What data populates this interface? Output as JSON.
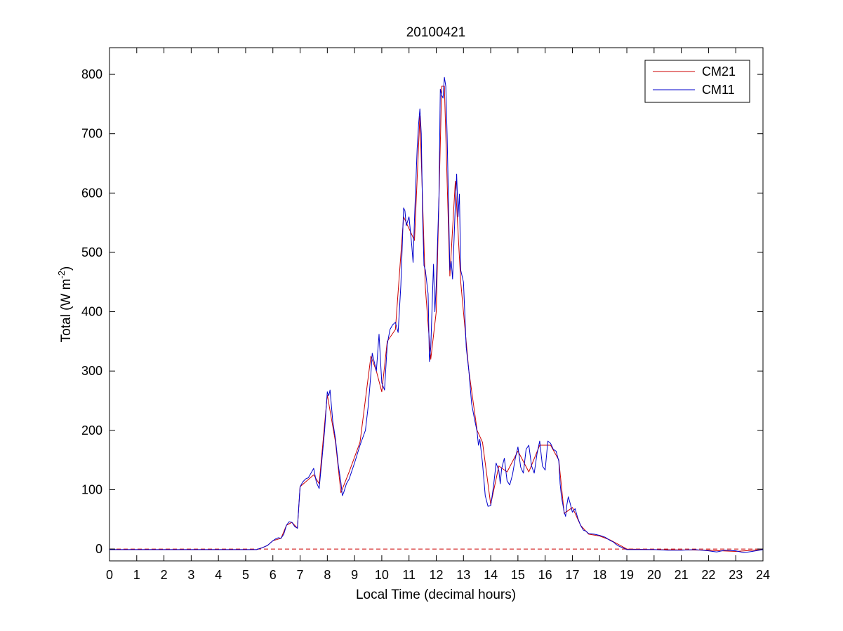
{
  "chart_data": {
    "type": "line",
    "title": "20100421",
    "xlabel": "Local Time (decimal hours)",
    "ylabel": "Total (W m-2)",
    "ylabel_parts": {
      "main": "Total (W m",
      "sup": "-2",
      "close": ")"
    },
    "xlim": [
      0,
      24
    ],
    "ylim": [
      -20,
      845
    ],
    "xticks": [
      0,
      1,
      2,
      3,
      4,
      5,
      6,
      7,
      8,
      9,
      10,
      11,
      12,
      13,
      14,
      15,
      16,
      17,
      18,
      19,
      20,
      21,
      22,
      23,
      24
    ],
    "xtick_labels": [
      "0",
      "1",
      "2",
      "3",
      "4",
      "5",
      "6",
      "7",
      "8",
      "9",
      "10",
      "11",
      "12",
      "13",
      "14",
      "15",
      "16",
      "17",
      "18",
      "19",
      "20",
      "21",
      "22",
      "23",
      "24"
    ],
    "yticks": [
      0,
      100,
      200,
      300,
      400,
      500,
      600,
      700,
      800
    ],
    "ytick_labels": [
      "0",
      "100",
      "200",
      "300",
      "400",
      "500",
      "600",
      "700",
      "800"
    ],
    "grid": false,
    "legend_position": "top-right",
    "zero_line": {
      "y": 0,
      "style": "dashed",
      "color": "#cc0000"
    },
    "series": [
      {
        "name": "CM21",
        "color": "#cc0000",
        "points": [
          [
            0,
            -1
          ],
          [
            5.4,
            -1
          ],
          [
            5.6,
            2
          ],
          [
            5.8,
            6
          ],
          [
            6.0,
            14
          ],
          [
            6.3,
            18
          ],
          [
            6.5,
            40
          ],
          [
            6.7,
            45
          ],
          [
            6.9,
            35
          ],
          [
            7.0,
            105
          ],
          [
            7.5,
            125
          ],
          [
            7.7,
            110
          ],
          [
            8.0,
            260
          ],
          [
            8.3,
            180
          ],
          [
            8.5,
            95
          ],
          [
            8.8,
            130
          ],
          [
            9.2,
            180
          ],
          [
            9.6,
            325
          ],
          [
            9.8,
            300
          ],
          [
            10.0,
            265
          ],
          [
            10.2,
            350
          ],
          [
            10.5,
            370
          ],
          [
            10.8,
            560
          ],
          [
            11.0,
            540
          ],
          [
            11.2,
            520
          ],
          [
            11.4,
            730
          ],
          [
            11.6,
            440
          ],
          [
            11.8,
            320
          ],
          [
            12.0,
            400
          ],
          [
            12.2,
            780
          ],
          [
            12.3,
            780
          ],
          [
            12.5,
            460
          ],
          [
            12.7,
            620
          ],
          [
            12.9,
            450
          ],
          [
            13.2,
            300
          ],
          [
            13.5,
            200
          ],
          [
            13.7,
            180
          ],
          [
            14.0,
            75
          ],
          [
            14.3,
            140
          ],
          [
            14.6,
            130
          ],
          [
            15.0,
            165
          ],
          [
            15.4,
            130
          ],
          [
            15.8,
            175
          ],
          [
            16.2,
            175
          ],
          [
            16.5,
            150
          ],
          [
            16.7,
            60
          ],
          [
            17.0,
            70
          ],
          [
            17.3,
            40
          ],
          [
            17.6,
            25
          ],
          [
            18.0,
            22
          ],
          [
            18.4,
            15
          ],
          [
            18.8,
            5
          ],
          [
            19.0,
            0
          ],
          [
            20.0,
            -1
          ],
          [
            22.0,
            -2
          ],
          [
            23.0,
            -4
          ],
          [
            24.0,
            -1
          ]
        ]
      },
      {
        "name": "CM11",
        "color": "#0000cc",
        "points": [
          [
            0,
            -1
          ],
          [
            1.0,
            -1
          ],
          [
            2.0,
            -1
          ],
          [
            3.0,
            -1
          ],
          [
            4.0,
            -1
          ],
          [
            5.0,
            -1
          ],
          [
            5.4,
            -1
          ],
          [
            5.6,
            2
          ],
          [
            5.8,
            6
          ],
          [
            5.9,
            10
          ],
          [
            6.0,
            14
          ],
          [
            6.1,
            17
          ],
          [
            6.2,
            19
          ],
          [
            6.3,
            18
          ],
          [
            6.4,
            25
          ],
          [
            6.5,
            40
          ],
          [
            6.6,
            46
          ],
          [
            6.7,
            45
          ],
          [
            6.8,
            38
          ],
          [
            6.9,
            35
          ],
          [
            7.0,
            105
          ],
          [
            7.1,
            113
          ],
          [
            7.2,
            118
          ],
          [
            7.3,
            120
          ],
          [
            7.4,
            128
          ],
          [
            7.5,
            136
          ],
          [
            7.6,
            112
          ],
          [
            7.7,
            102
          ],
          [
            7.8,
            150
          ],
          [
            7.9,
            200
          ],
          [
            8.0,
            265
          ],
          [
            8.05,
            258
          ],
          [
            8.1,
            268
          ],
          [
            8.2,
            215
          ],
          [
            8.3,
            185
          ],
          [
            8.4,
            142
          ],
          [
            8.5,
            112
          ],
          [
            8.55,
            90
          ],
          [
            8.6,
            95
          ],
          [
            8.7,
            110
          ],
          [
            8.8,
            118
          ],
          [
            9.0,
            145
          ],
          [
            9.2,
            175
          ],
          [
            9.4,
            200
          ],
          [
            9.5,
            240
          ],
          [
            9.6,
            295
          ],
          [
            9.65,
            330
          ],
          [
            9.8,
            300
          ],
          [
            9.9,
            362
          ],
          [
            10.0,
            280
          ],
          [
            10.1,
            268
          ],
          [
            10.2,
            345
          ],
          [
            10.3,
            370
          ],
          [
            10.4,
            378
          ],
          [
            10.5,
            382
          ],
          [
            10.6,
            365
          ],
          [
            10.7,
            445
          ],
          [
            10.8,
            575
          ],
          [
            10.85,
            570
          ],
          [
            10.9,
            545
          ],
          [
            11.0,
            560
          ],
          [
            11.1,
            512
          ],
          [
            11.15,
            483
          ],
          [
            11.2,
            555
          ],
          [
            11.3,
            675
          ],
          [
            11.35,
            715
          ],
          [
            11.4,
            742
          ],
          [
            11.45,
            700
          ],
          [
            11.5,
            560
          ],
          [
            11.55,
            478
          ],
          [
            11.6,
            470
          ],
          [
            11.7,
            430
          ],
          [
            11.75,
            316
          ],
          [
            11.8,
            340
          ],
          [
            11.9,
            480
          ],
          [
            11.95,
            400
          ],
          [
            12.0,
            445
          ],
          [
            12.1,
            595
          ],
          [
            12.15,
            775
          ],
          [
            12.2,
            765
          ],
          [
            12.25,
            760
          ],
          [
            12.3,
            795
          ],
          [
            12.35,
            780
          ],
          [
            12.4,
            698
          ],
          [
            12.5,
            470
          ],
          [
            12.55,
            485
          ],
          [
            12.6,
            455
          ],
          [
            12.7,
            580
          ],
          [
            12.75,
            632
          ],
          [
            12.8,
            560
          ],
          [
            12.85,
            598
          ],
          [
            12.9,
            470
          ],
          [
            13.0,
            450
          ],
          [
            13.1,
            340
          ],
          [
            13.2,
            300
          ],
          [
            13.3,
            245
          ],
          [
            13.4,
            220
          ],
          [
            13.5,
            198
          ],
          [
            13.55,
            175
          ],
          [
            13.6,
            185
          ],
          [
            13.7,
            145
          ],
          [
            13.8,
            90
          ],
          [
            13.9,
            72
          ],
          [
            14.0,
            73
          ],
          [
            14.1,
            105
          ],
          [
            14.2,
            145
          ],
          [
            14.3,
            132
          ],
          [
            14.35,
            110
          ],
          [
            14.4,
            135
          ],
          [
            14.5,
            153
          ],
          [
            14.6,
            115
          ],
          [
            14.7,
            108
          ],
          [
            14.8,
            125
          ],
          [
            14.9,
            152
          ],
          [
            15.0,
            172
          ],
          [
            15.1,
            138
          ],
          [
            15.2,
            128
          ],
          [
            15.3,
            168
          ],
          [
            15.4,
            175
          ],
          [
            15.5,
            140
          ],
          [
            15.6,
            128
          ],
          [
            15.7,
            160
          ],
          [
            15.8,
            182
          ],
          [
            15.9,
            140
          ],
          [
            16.0,
            133
          ],
          [
            16.1,
            182
          ],
          [
            16.2,
            178
          ],
          [
            16.3,
            168
          ],
          [
            16.4,
            165
          ],
          [
            16.5,
            148
          ],
          [
            16.55,
            110
          ],
          [
            16.6,
            88
          ],
          [
            16.7,
            62
          ],
          [
            16.75,
            55
          ],
          [
            16.8,
            75
          ],
          [
            16.85,
            88
          ],
          [
            16.9,
            80
          ],
          [
            17.0,
            62
          ],
          [
            17.1,
            68
          ],
          [
            17.2,
            52
          ],
          [
            17.3,
            40
          ],
          [
            17.4,
            32
          ],
          [
            17.5,
            30
          ],
          [
            17.6,
            26
          ],
          [
            17.8,
            25
          ],
          [
            18.0,
            23
          ],
          [
            18.2,
            20
          ],
          [
            18.3,
            17
          ],
          [
            18.4,
            14
          ],
          [
            18.5,
            12
          ],
          [
            18.6,
            8
          ],
          [
            18.7,
            5
          ],
          [
            18.8,
            3
          ],
          [
            18.9,
            1
          ],
          [
            19.0,
            -1
          ],
          [
            19.5,
            -1
          ],
          [
            20.0,
            -1
          ],
          [
            20.5,
            -2
          ],
          [
            21.0,
            -2
          ],
          [
            21.5,
            -1
          ],
          [
            22.0,
            -3
          ],
          [
            22.3,
            -5
          ],
          [
            22.6,
            -2
          ],
          [
            23.0,
            -3
          ],
          [
            23.3,
            -6
          ],
          [
            23.6,
            -4
          ],
          [
            24.0,
            -1
          ]
        ]
      }
    ]
  }
}
